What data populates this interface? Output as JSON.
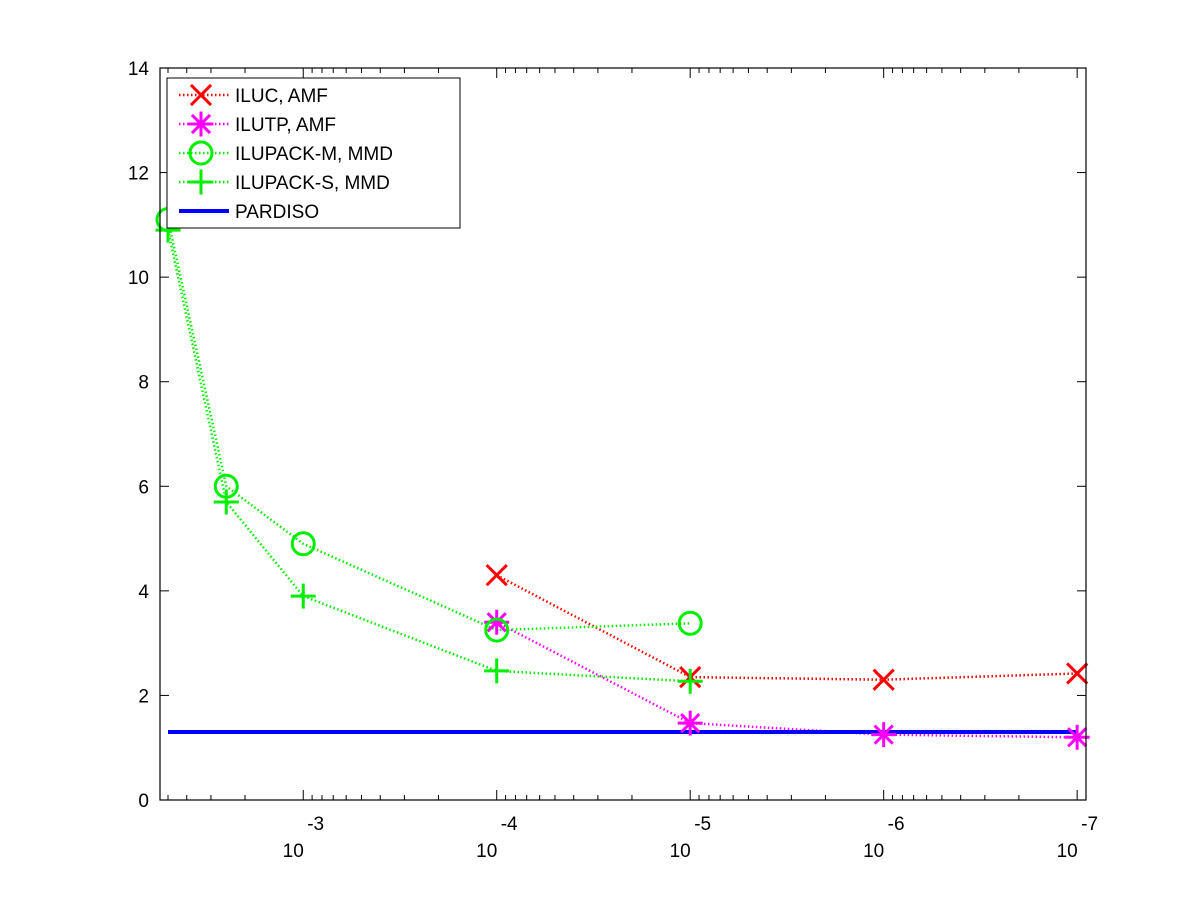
{
  "chart_data": {
    "type": "line",
    "title": "",
    "xlabel": "",
    "ylabel": "",
    "xscale": "log",
    "xaxis_reversed": true,
    "xlim": [
      0.0055,
      9e-08
    ],
    "ylim": [
      0,
      14
    ],
    "y_ticks": [
      0,
      2,
      4,
      6,
      8,
      10,
      12,
      14
    ],
    "x_ticks": [
      {
        "value": 0.001,
        "base": "10",
        "exp": "-3"
      },
      {
        "value": 0.0001,
        "base": "10",
        "exp": "-4"
      },
      {
        "value": 1e-05,
        "base": "10",
        "exp": "-5"
      },
      {
        "value": 1e-06,
        "base": "10",
        "exp": "-6"
      },
      {
        "value": 1e-07,
        "base": "10",
        "exp": "-7"
      }
    ],
    "grid": false,
    "legend_position": "top-left",
    "series": [
      {
        "name": "ILUC, AMF",
        "color": "#ff0000",
        "marker": "x",
        "line_style": "dotted",
        "points": [
          [
            0.0001,
            4.3
          ],
          [
            1e-05,
            2.35
          ],
          [
            1e-06,
            2.3
          ],
          [
            1e-07,
            2.42
          ]
        ]
      },
      {
        "name": "ILUTP, AMF",
        "color": "#ff00ff",
        "marker": "asterisk",
        "line_style": "dotted",
        "points": [
          [
            0.0001,
            3.4
          ],
          [
            1e-05,
            1.47
          ],
          [
            1e-06,
            1.25
          ],
          [
            1e-07,
            1.2
          ]
        ]
      },
      {
        "name": "ILUPACK-M, MMD",
        "color": "#00ee00",
        "marker": "circle",
        "line_style": "dotted",
        "points": [
          [
            0.005,
            11.1
          ],
          [
            0.0025,
            6.0
          ],
          [
            0.001,
            4.9
          ],
          [
            0.0001,
            3.25
          ],
          [
            1e-05,
            3.38
          ]
        ]
      },
      {
        "name": "ILUPACK-S, MMD",
        "color": "#00ee00",
        "marker": "plus",
        "line_style": "dotted",
        "points": [
          [
            0.005,
            10.9
          ],
          [
            0.0025,
            5.7
          ],
          [
            0.001,
            3.9
          ],
          [
            0.0001,
            2.47
          ],
          [
            1e-05,
            2.27
          ]
        ]
      },
      {
        "name": "PARDISO",
        "color": "#0000ff",
        "marker": "none",
        "line_style": "solid",
        "points": [
          [
            0.005,
            1.3
          ],
          [
            1e-07,
            1.3
          ]
        ]
      }
    ]
  }
}
